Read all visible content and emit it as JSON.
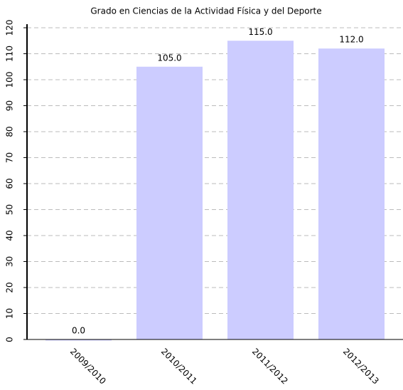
{
  "chart_data": {
    "type": "bar",
    "title": "Grado en Ciencias de la Actividad Física y del Deporte",
    "categories": [
      "2009/2010",
      "2010/2011",
      "2011/2012",
      "2012/2013"
    ],
    "values": [
      0,
      105,
      115,
      112
    ],
    "value_labels": [
      "0.0",
      "105.0",
      "115.0",
      "112.0"
    ],
    "color": "#ccccff",
    "ylim": [
      0,
      120
    ],
    "yticks": [
      0,
      10,
      20,
      30,
      40,
      50,
      60,
      70,
      80,
      90,
      100,
      110,
      120
    ],
    "grid": true
  }
}
